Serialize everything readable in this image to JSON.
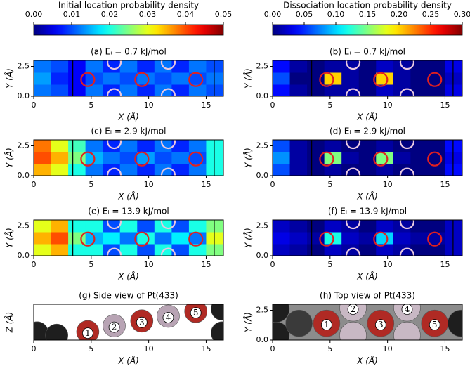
{
  "chart_data": [
    {
      "type": "colorbar",
      "label": "Initial location probability density",
      "cmap": "jet",
      "clim": [
        0,
        0.05
      ],
      "ticks": [
        {
          "value": 0,
          "label": "0.00"
        },
        {
          "value": 0.01,
          "label": "0.01"
        },
        {
          "value": 0.02,
          "label": "0.02"
        },
        {
          "value": 0.03,
          "label": "0.03"
        },
        {
          "value": 0.04,
          "label": "0.04"
        },
        {
          "value": 0.05,
          "label": "0.05"
        }
      ]
    },
    {
      "type": "colorbar",
      "label": "Dissociation location probability density",
      "cmap": "jet",
      "clim": [
        0,
        0.3
      ],
      "ticks": [
        {
          "value": 0,
          "label": "0.00"
        },
        {
          "value": 0.05,
          "label": "0.05"
        },
        {
          "value": 0.1,
          "label": "0.10"
        },
        {
          "value": 0.15,
          "label": "0.15"
        },
        {
          "value": 0.2,
          "label": "0.20"
        },
        {
          "value": 0.25,
          "label": "0.25"
        },
        {
          "value": 0.3,
          "label": "0.30"
        }
      ]
    },
    {
      "type": "heatmap",
      "title": "(a) Eᵢ = 0.7 kJ/mol",
      "cmap": "jet",
      "clim": [
        0,
        0.05
      ],
      "xbins": [
        0,
        1.5,
        3,
        4.5,
        6,
        7.5,
        9,
        10.5,
        12,
        13.5,
        15,
        16.5
      ],
      "ybins": [
        0,
        1,
        2,
        3
      ],
      "values": [
        [
          0.012,
          0.01,
          0.006,
          0.012,
          0.008,
          0.012,
          0.008,
          0.012,
          0.008,
          0.012,
          0.01
        ],
        [
          0.014,
          0.008,
          0.006,
          0.01,
          0.012,
          0.01,
          0.012,
          0.01,
          0.012,
          0.01,
          0.012
        ],
        [
          0.012,
          0.01,
          0.006,
          0.012,
          0.008,
          0.012,
          0.008,
          0.012,
          0.008,
          0.012,
          0.01
        ]
      ],
      "markers": [
        {
          "x": 4.7,
          "y": 1.4,
          "color": "#e02020"
        },
        {
          "x": 9.4,
          "y": 1.4,
          "color": "#e02020"
        },
        {
          "x": 14.1,
          "y": 1.4,
          "color": "#e02020"
        },
        {
          "x": 7.0,
          "y": 0.05,
          "color": "#e8c8e0"
        },
        {
          "x": 11.7,
          "y": 0.05,
          "color": "#e8c8e0"
        },
        {
          "x": 7.0,
          "y": 2.85,
          "color": "#e8c8e0"
        },
        {
          "x": 11.7,
          "y": 2.85,
          "color": "#e8c8e0"
        }
      ],
      "boundaries": [
        3.4,
        15.7
      ],
      "xlim": [
        0,
        16.5
      ],
      "xticks": [
        0,
        5,
        10,
        15
      ],
      "ylim": [
        0,
        3
      ],
      "yticks": [
        {
          "value": 0,
          "label": "0.0"
        },
        {
          "value": 2.5,
          "label": "2.5"
        }
      ],
      "xlabel": "X (Å)",
      "ylabel": "Y (Å)"
    },
    {
      "type": "heatmap",
      "title": "(b) Eᵢ = 0.7 kJ/mol",
      "cmap": "jet",
      "clim": [
        0,
        0.3
      ],
      "xbins": [
        0,
        1.5,
        3,
        4.5,
        6,
        7.5,
        9,
        10.5,
        12,
        13.5,
        15,
        16.5
      ],
      "ybins": [
        0,
        1,
        2,
        3
      ],
      "values": [
        [
          0.04,
          0.01,
          0,
          0.01,
          0.01,
          0,
          0.02,
          0.01,
          0,
          0,
          0.03
        ],
        [
          0.06,
          0,
          0,
          0.2,
          0.01,
          0,
          0.2,
          0.01,
          0,
          0,
          0.02
        ],
        [
          0.04,
          0.01,
          0,
          0.01,
          0.01,
          0,
          0.02,
          0.01,
          0,
          0,
          0.03
        ]
      ],
      "markers": [
        {
          "x": 4.7,
          "y": 1.4,
          "color": "#e02020"
        },
        {
          "x": 9.4,
          "y": 1.4,
          "color": "#e02020"
        },
        {
          "x": 14.1,
          "y": 1.4,
          "color": "#e02020"
        },
        {
          "x": 7.0,
          "y": 0.05,
          "color": "#e8c8e0"
        },
        {
          "x": 11.7,
          "y": 0.05,
          "color": "#e8c8e0"
        },
        {
          "x": 7.0,
          "y": 2.85,
          "color": "#e8c8e0"
        },
        {
          "x": 11.7,
          "y": 2.85,
          "color": "#e8c8e0"
        }
      ],
      "boundaries": [
        3.4,
        15.7
      ],
      "xlim": [
        0,
        16.5
      ],
      "xticks": [
        0,
        5,
        10,
        15
      ],
      "ylim": [
        0,
        3
      ],
      "yticks": [
        {
          "value": 0,
          "label": "0.0"
        },
        {
          "value": 2.5,
          "label": "2.5"
        }
      ],
      "xlabel": "X (Å)",
      "ylabel": "Y (Å)"
    },
    {
      "type": "heatmap",
      "title": "(c) Eᵢ = 2.9 kJ/mol",
      "cmap": "jet",
      "clim": [
        0,
        0.05
      ],
      "xbins": [
        0,
        1.5,
        3,
        4.5,
        6,
        7.5,
        9,
        10.5,
        12,
        13.5,
        15,
        16.5
      ],
      "ybins": [
        0,
        1,
        2,
        3
      ],
      "values": [
        [
          0.035,
          0.03,
          0.02,
          0.012,
          0.008,
          0.012,
          0.008,
          0.012,
          0.008,
          0.012,
          0.02
        ],
        [
          0.04,
          0.035,
          0.025,
          0.015,
          0.012,
          0.01,
          0.014,
          0.01,
          0.012,
          0.01,
          0.02
        ],
        [
          0.038,
          0.03,
          0.022,
          0.012,
          0.008,
          0.012,
          0.008,
          0.012,
          0.008,
          0.012,
          0.02
        ]
      ],
      "markers": [
        {
          "x": 4.7,
          "y": 1.4,
          "color": "#e02020"
        },
        {
          "x": 9.4,
          "y": 1.4,
          "color": "#e02020"
        },
        {
          "x": 14.1,
          "y": 1.4,
          "color": "#e02020"
        },
        {
          "x": 7.0,
          "y": 0.05,
          "color": "#e8c8e0"
        },
        {
          "x": 11.7,
          "y": 0.05,
          "color": "#e8c8e0"
        },
        {
          "x": 7.0,
          "y": 2.85,
          "color": "#e8c8e0"
        },
        {
          "x": 11.7,
          "y": 2.85,
          "color": "#e8c8e0"
        }
      ],
      "boundaries": [
        3.4,
        15.7
      ],
      "xlim": [
        0,
        16.5
      ],
      "xticks": [
        0,
        5,
        10,
        15
      ],
      "ylim": [
        0,
        3
      ],
      "yticks": [
        {
          "value": 0,
          "label": "0.0"
        },
        {
          "value": 2.5,
          "label": "2.5"
        }
      ],
      "xlabel": "X (Å)",
      "ylabel": "Y (Å)"
    },
    {
      "type": "heatmap",
      "title": "(d) Eᵢ = 2.9 kJ/mol",
      "cmap": "jet",
      "clim": [
        0,
        0.3
      ],
      "xbins": [
        0,
        1.5,
        3,
        4.5,
        6,
        7.5,
        9,
        10.5,
        12,
        13.5,
        15,
        16.5
      ],
      "ybins": [
        0,
        1,
        2,
        3
      ],
      "values": [
        [
          0.06,
          0.01,
          0,
          0.01,
          0,
          0,
          0.01,
          0,
          0,
          0,
          0.04
        ],
        [
          0.08,
          0.01,
          0,
          0.15,
          0.01,
          0,
          0.15,
          0.01,
          0,
          0,
          0.03
        ],
        [
          0.06,
          0.01,
          0,
          0.01,
          0,
          0,
          0.01,
          0,
          0,
          0,
          0.04
        ]
      ],
      "markers": [
        {
          "x": 4.7,
          "y": 1.4,
          "color": "#e02020"
        },
        {
          "x": 9.4,
          "y": 1.4,
          "color": "#e02020"
        },
        {
          "x": 14.1,
          "y": 1.4,
          "color": "#e02020"
        },
        {
          "x": 7.0,
          "y": 0.05,
          "color": "#e8c8e0"
        },
        {
          "x": 11.7,
          "y": 0.05,
          "color": "#e8c8e0"
        },
        {
          "x": 7.0,
          "y": 2.85,
          "color": "#e8c8e0"
        },
        {
          "x": 11.7,
          "y": 2.85,
          "color": "#e8c8e0"
        }
      ],
      "boundaries": [
        3.4,
        15.7
      ],
      "xlim": [
        0,
        16.5
      ],
      "xticks": [
        0,
        5,
        10,
        15
      ],
      "ylim": [
        0,
        3
      ],
      "yticks": [
        {
          "value": 0,
          "label": "0.0"
        },
        {
          "value": 2.5,
          "label": "2.5"
        }
      ],
      "xlabel": "X (Å)",
      "ylabel": "Y (Å)"
    },
    {
      "type": "heatmap",
      "title": "(e) Eᵢ = 13.9 kJ/mol",
      "cmap": "jet",
      "clim": [
        0,
        0.05
      ],
      "xbins": [
        0,
        1.5,
        3,
        4.5,
        6,
        7.5,
        9,
        10.5,
        12,
        13.5,
        15,
        16.5
      ],
      "ybins": [
        0,
        1,
        2,
        3
      ],
      "values": [
        [
          0.03,
          0.035,
          0.02,
          0.02,
          0.01,
          0.02,
          0.01,
          0.02,
          0.01,
          0.02,
          0.025
        ],
        [
          0.035,
          0.04,
          0.025,
          0.015,
          0.018,
          0.012,
          0.02,
          0.012,
          0.018,
          0.012,
          0.03
        ],
        [
          0.03,
          0.035,
          0.02,
          0.02,
          0.01,
          0.02,
          0.01,
          0.02,
          0.01,
          0.02,
          0.025
        ]
      ],
      "markers": [
        {
          "x": 4.7,
          "y": 1.4,
          "color": "#e02020"
        },
        {
          "x": 9.4,
          "y": 1.4,
          "color": "#e02020"
        },
        {
          "x": 14.1,
          "y": 1.4,
          "color": "#e02020"
        },
        {
          "x": 7.0,
          "y": 0.05,
          "color": "#e8c8e0"
        },
        {
          "x": 11.7,
          "y": 0.05,
          "color": "#e8c8e0"
        },
        {
          "x": 7.0,
          "y": 2.85,
          "color": "#e8c8e0"
        },
        {
          "x": 11.7,
          "y": 2.85,
          "color": "#e8c8e0"
        }
      ],
      "boundaries": [
        3.4,
        15.7
      ],
      "xlim": [
        0,
        16.5
      ],
      "xticks": [
        0,
        5,
        10,
        15
      ],
      "ylim": [
        0,
        3
      ],
      "yticks": [
        {
          "value": 0,
          "label": "0.0"
        },
        {
          "value": 2.5,
          "label": "2.5"
        }
      ],
      "xlabel": "X (Å)",
      "ylabel": "Y (Å)"
    },
    {
      "type": "heatmap",
      "title": "(f) Eᵢ = 13.9 kJ/mol",
      "cmap": "jet",
      "clim": [
        0,
        0.3
      ],
      "xbins": [
        0,
        1.5,
        3,
        4.5,
        6,
        7.5,
        9,
        10.5,
        12,
        13.5,
        15,
        16.5
      ],
      "ybins": [
        0,
        1,
        2,
        3
      ],
      "values": [
        [
          0.02,
          0.01,
          0,
          0.02,
          0.01,
          0,
          0.02,
          0.01,
          0,
          0,
          0.02
        ],
        [
          0.03,
          0.02,
          0.01,
          0.12,
          0.02,
          0.01,
          0.1,
          0.02,
          0.01,
          0.01,
          0.02
        ],
        [
          0.02,
          0.01,
          0,
          0.02,
          0.01,
          0,
          0.02,
          0.01,
          0,
          0,
          0.02
        ]
      ],
      "markers": [
        {
          "x": 4.7,
          "y": 1.4,
          "color": "#e02020"
        },
        {
          "x": 9.4,
          "y": 1.4,
          "color": "#e02020"
        },
        {
          "x": 14.1,
          "y": 1.4,
          "color": "#e02020"
        },
        {
          "x": 7.0,
          "y": 0.05,
          "color": "#e8c8e0"
        },
        {
          "x": 11.7,
          "y": 0.05,
          "color": "#e8c8e0"
        },
        {
          "x": 7.0,
          "y": 2.85,
          "color": "#e8c8e0"
        },
        {
          "x": 11.7,
          "y": 2.85,
          "color": "#e8c8e0"
        }
      ],
      "boundaries": [
        3.4,
        15.7
      ],
      "xlim": [
        0,
        16.5
      ],
      "xticks": [
        0,
        5,
        10,
        15
      ],
      "ylim": [
        0,
        3
      ],
      "yticks": [
        {
          "value": 0,
          "label": "0.0"
        },
        {
          "value": 2.5,
          "label": "2.5"
        }
      ],
      "xlabel": "X (Å)",
      "ylabel": "Y (Å)"
    },
    {
      "type": "atoms",
      "title": "(g) Side view of Pt(433)",
      "background": "#ffffff",
      "atoms": [
        {
          "x": 0.3,
          "y": 0.6,
          "color": "#1e1e1e"
        },
        {
          "x": 2.0,
          "y": 0.4,
          "color": "#1e1e1e"
        },
        {
          "x": 16.4,
          "y": 2.6,
          "color": "#1e1e1e"
        },
        {
          "x": 16.4,
          "y": 0.6,
          "color": "#1e1e1e"
        },
        {
          "x": 4.7,
          "y": 0.7,
          "color": "#b02a24",
          "label": "1"
        },
        {
          "x": 7.0,
          "y": 1.2,
          "color": "#b8a4b4",
          "label": "2"
        },
        {
          "x": 9.4,
          "y": 1.6,
          "color": "#b02a24",
          "label": "3"
        },
        {
          "x": 11.7,
          "y": 2.0,
          "color": "#b8a4b4",
          "label": "4"
        },
        {
          "x": 14.1,
          "y": 2.4,
          "color": "#b02a24",
          "label": "5"
        }
      ],
      "xlim": [
        0,
        16.5
      ],
      "xticks": [
        0,
        5,
        10,
        15
      ],
      "ylim": [
        0,
        3
      ],
      "yticks": [],
      "xlabel": "X (Å)",
      "ylabel": "Z (Å)"
    },
    {
      "type": "atoms",
      "title": "(h) Top view of Pt(433)",
      "background": "#8c8c8c",
      "atoms": [
        {
          "x": 0.3,
          "y": 0.4,
          "color": "#1e1e1e"
        },
        {
          "x": 0.3,
          "y": 2.6,
          "color": "#1e1e1e"
        },
        {
          "x": 2.3,
          "y": 1.4,
          "color": "#3a3a3a"
        },
        {
          "x": 16.4,
          "y": 1.4,
          "color": "#1e1e1e"
        },
        {
          "x": 7.0,
          "y": 0.4,
          "color": "#c8b8c4"
        },
        {
          "x": 11.7,
          "y": 0.4,
          "color": "#c8b8c4"
        },
        {
          "x": 7.0,
          "y": 2.7,
          "color": "#c8b8c4",
          "label": "2"
        },
        {
          "x": 11.7,
          "y": 2.7,
          "color": "#c8b8c4",
          "label": "4"
        },
        {
          "x": 4.7,
          "y": 1.4,
          "color": "#b02a24",
          "label": "1"
        },
        {
          "x": 9.4,
          "y": 1.4,
          "color": "#b02a24",
          "label": "3"
        },
        {
          "x": 14.1,
          "y": 1.4,
          "color": "#b02a24",
          "label": "5"
        }
      ],
      "xlim": [
        0,
        16.5
      ],
      "xticks": [
        0,
        5,
        10,
        15
      ],
      "ylim": [
        0,
        3
      ],
      "yticks": [
        {
          "value": 0,
          "label": "0.0"
        },
        {
          "value": 2.5,
          "label": "2.5"
        }
      ],
      "xlabel": "X (Å)",
      "ylabel": "Y (Å)"
    }
  ]
}
